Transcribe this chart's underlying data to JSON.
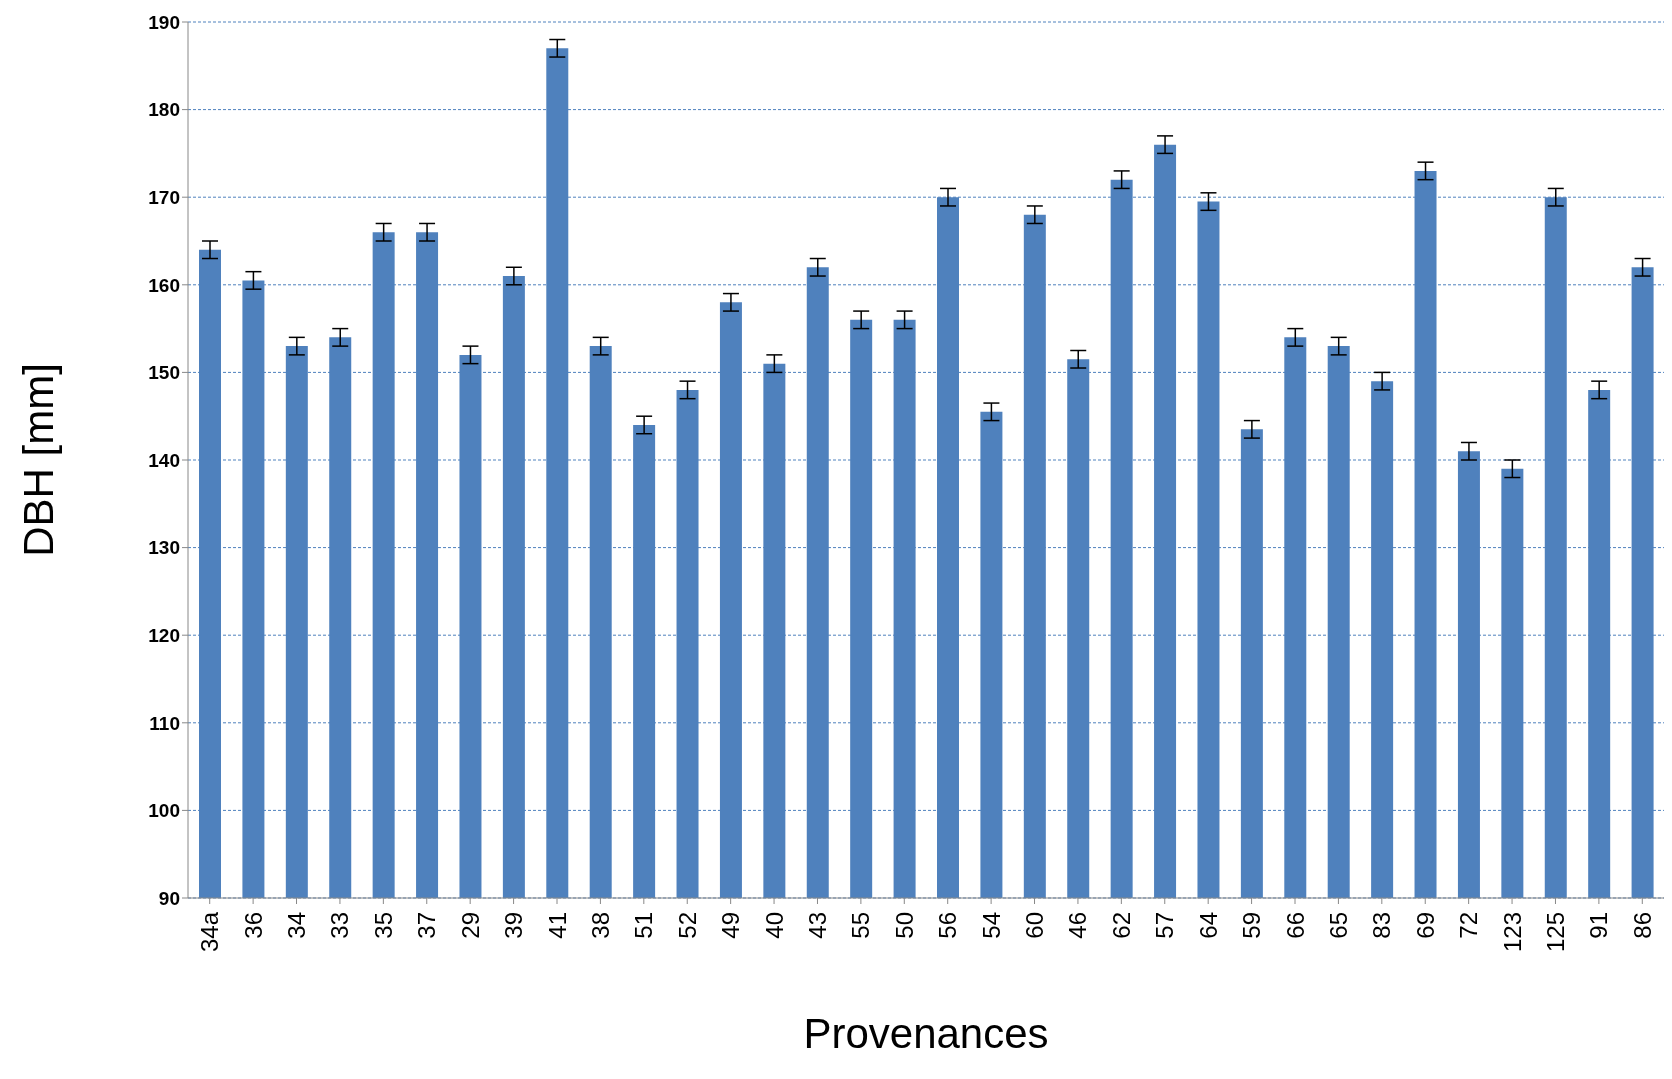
{
  "chart_data": {
    "type": "bar",
    "xlabel": "Provenances",
    "ylabel": "DBH [mm]",
    "categories": [
      "34a",
      "36",
      "34",
      "33",
      "35",
      "37",
      "29",
      "39",
      "41",
      "38",
      "51",
      "52",
      "49",
      "40",
      "43",
      "55",
      "50",
      "56",
      "54",
      "60",
      "46",
      "62",
      "57",
      "64",
      "59",
      "66",
      "65",
      "83",
      "69",
      "72",
      "123",
      "125",
      "91",
      "86"
    ],
    "values": [
      164,
      160.5,
      153,
      154,
      166,
      166,
      152,
      161,
      187,
      153,
      144,
      148,
      158,
      151,
      162,
      156,
      156,
      170,
      145.5,
      168,
      151.5,
      172,
      176,
      169.5,
      143.5,
      154,
      153,
      149,
      173,
      141,
      139,
      170,
      148,
      162
    ],
    "errors": [
      1,
      1,
      1,
      1,
      1,
      1,
      1,
      1,
      1,
      1,
      1,
      1,
      1,
      1,
      1,
      1,
      1,
      1,
      1,
      1,
      1,
      1,
      1,
      1,
      1,
      1,
      1,
      1,
      1,
      1,
      1,
      1,
      1,
      1
    ],
    "color": "#4f81bd",
    "ylim": [
      90,
      190
    ],
    "yticks": [
      90,
      100,
      110,
      120,
      130,
      140,
      150,
      160,
      170,
      180,
      190
    ],
    "grid": "y"
  }
}
